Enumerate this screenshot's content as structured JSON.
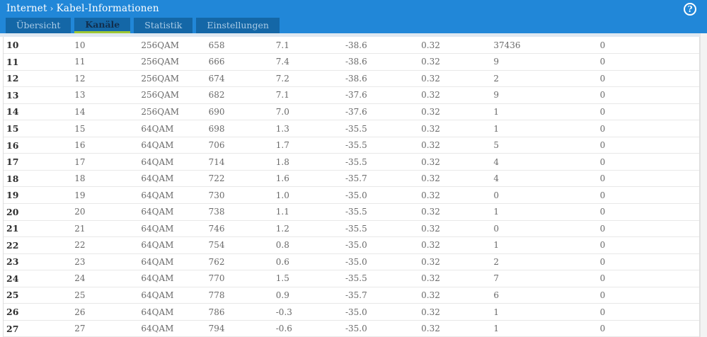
{
  "header": {
    "breadcrumb": {
      "parent": "Internet",
      "separator": "›",
      "current": "Kabel-Informationen"
    },
    "help_label": "?"
  },
  "tabs": [
    {
      "label": "Übersicht",
      "active": false
    },
    {
      "label": "Kanäle",
      "active": true
    },
    {
      "label": "Statistik",
      "active": false
    },
    {
      "label": "Einstellungen",
      "active": false
    }
  ],
  "colors": {
    "header_blue": "#2187d8",
    "tab_blue": "#1467a7",
    "tab_inactive_text": "#a9cbe6",
    "tab_active_text": "#112f4e",
    "tab_active_underline": "#9dc733",
    "table_text": "#6a6a6a",
    "table_bold_text": "#2e2e2e",
    "row_divider": "#e8e8e8"
  },
  "table": {
    "column_keys": [
      "channel",
      "channel_id",
      "modulation",
      "frequency",
      "power",
      "mse",
      "latency",
      "errors_correctable",
      "errors_uncorrectable"
    ],
    "rows": [
      [
        "10",
        "10",
        "256QAM",
        "658",
        "7.1",
        "-38.6",
        "0.32",
        "37436",
        "0"
      ],
      [
        "11",
        "11",
        "256QAM",
        "666",
        "7.4",
        "-38.6",
        "0.32",
        "9",
        "0"
      ],
      [
        "12",
        "12",
        "256QAM",
        "674",
        "7.2",
        "-38.6",
        "0.32",
        "2",
        "0"
      ],
      [
        "13",
        "13",
        "256QAM",
        "682",
        "7.1",
        "-37.6",
        "0.32",
        "9",
        "0"
      ],
      [
        "14",
        "14",
        "256QAM",
        "690",
        "7.0",
        "-37.6",
        "0.32",
        "1",
        "0"
      ],
      [
        "15",
        "15",
        "64QAM",
        "698",
        "1.3",
        "-35.5",
        "0.32",
        "1",
        "0"
      ],
      [
        "16",
        "16",
        "64QAM",
        "706",
        "1.7",
        "-35.5",
        "0.32",
        "5",
        "0"
      ],
      [
        "17",
        "17",
        "64QAM",
        "714",
        "1.8",
        "-35.5",
        "0.32",
        "4",
        "0"
      ],
      [
        "18",
        "18",
        "64QAM",
        "722",
        "1.6",
        "-35.7",
        "0.32",
        "4",
        "0"
      ],
      [
        "19",
        "19",
        "64QAM",
        "730",
        "1.0",
        "-35.0",
        "0.32",
        "0",
        "0"
      ],
      [
        "20",
        "20",
        "64QAM",
        "738",
        "1.1",
        "-35.5",
        "0.32",
        "1",
        "0"
      ],
      [
        "21",
        "21",
        "64QAM",
        "746",
        "1.2",
        "-35.5",
        "0.32",
        "0",
        "0"
      ],
      [
        "22",
        "22",
        "64QAM",
        "754",
        "0.8",
        "-35.0",
        "0.32",
        "1",
        "0"
      ],
      [
        "23",
        "23",
        "64QAM",
        "762",
        "0.6",
        "-35.0",
        "0.32",
        "2",
        "0"
      ],
      [
        "24",
        "24",
        "64QAM",
        "770",
        "1.5",
        "-35.5",
        "0.32",
        "7",
        "0"
      ],
      [
        "25",
        "25",
        "64QAM",
        "778",
        "0.9",
        "-35.7",
        "0.32",
        "6",
        "0"
      ],
      [
        "26",
        "26",
        "64QAM",
        "786",
        "-0.3",
        "-35.0",
        "0.32",
        "1",
        "0"
      ],
      [
        "27",
        "27",
        "64QAM",
        "794",
        "-0.6",
        "-35.0",
        "0.32",
        "1",
        "0"
      ]
    ]
  }
}
